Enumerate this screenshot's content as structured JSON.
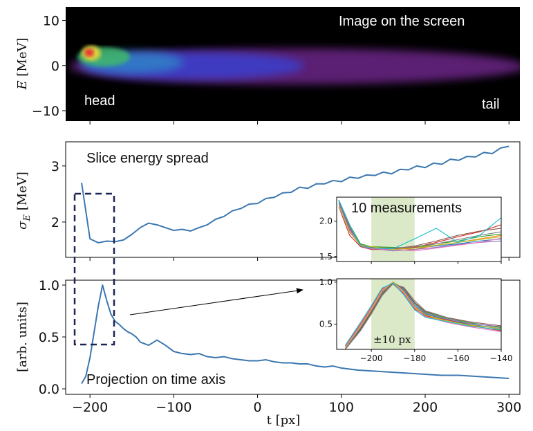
{
  "chart_data": [
    {
      "type": "image",
      "ylabel": {
        "symbol": "E",
        "unit": "[MeV]"
      },
      "xlim": [
        -229,
        313
      ],
      "xticks": [
        -200,
        -100,
        0,
        100,
        200,
        300
      ],
      "show_xtick_labels": false,
      "ylim": [
        -12.3,
        13
      ],
      "yticks": [
        10,
        0,
        {
          "value": -10,
          "label": "−10"
        }
      ],
      "annotation": "Image on the screen",
      "head_label": "head",
      "tail_label": "tail"
    },
    {
      "type": "line",
      "ylabel": {
        "symbol": "σ",
        "sub": "E",
        "unit": "[MeV]"
      },
      "xlim": [
        -229,
        313
      ],
      "xticks": [
        -200,
        -100,
        0,
        100,
        200,
        300
      ],
      "show_xtick_labels": false,
      "ylim": [
        1.37,
        3.43
      ],
      "yticks": [
        3,
        2
      ],
      "annotation": "Slice energy spread",
      "x": [
        -210,
        -200,
        -190,
        -180,
        -170,
        -160,
        -150,
        -140,
        -130,
        -120,
        -110,
        -100,
        -90,
        -80,
        -70,
        -60,
        -50,
        -40,
        -30,
        -20,
        -10,
        0,
        10,
        20,
        30,
        40,
        50,
        60,
        70,
        80,
        90,
        100,
        110,
        120,
        130,
        140,
        150,
        160,
        170,
        180,
        190,
        200,
        210,
        220,
        230,
        240,
        250,
        260,
        270,
        280,
        290,
        300
      ],
      "series": [
        {
          "color": "#3a77b0",
          "values": [
            2.7,
            1.7,
            1.63,
            1.66,
            1.65,
            1.68,
            1.78,
            1.9,
            1.98,
            1.95,
            1.9,
            1.85,
            1.87,
            1.84,
            1.9,
            1.95,
            2.05,
            2.1,
            2.2,
            2.24,
            2.32,
            2.33,
            2.42,
            2.44,
            2.52,
            2.53,
            2.62,
            2.6,
            2.68,
            2.68,
            2.74,
            2.72,
            2.8,
            2.78,
            2.84,
            2.83,
            2.89,
            2.86,
            2.94,
            2.93,
            3.0,
            2.97,
            3.05,
            3.03,
            3.12,
            3.1,
            3.17,
            3.16,
            3.24,
            3.22,
            3.32,
            3.35
          ]
        }
      ]
    },
    {
      "type": "line",
      "ylabel": {
        "unit": "[arb. units]"
      },
      "xlabel": "t [px]",
      "xlim": [
        -229,
        313
      ],
      "xticks": [
        {
          "value": -200,
          "label": "−200"
        },
        {
          "value": -100,
          "label": "−100"
        },
        0,
        100,
        200,
        300
      ],
      "ylim": [
        -0.053,
        1.047
      ],
      "yticks": [
        {
          "value": 1.0,
          "label": "1.0"
        },
        0.5,
        {
          "value": 0.0,
          "label": "0.0"
        }
      ],
      "annotation": "Projection on time axis",
      "x": [
        -210,
        -205,
        -200,
        -195,
        -190,
        -185,
        -180,
        -175,
        -170,
        -165,
        -160,
        -155,
        -150,
        -145,
        -140,
        -130,
        -120,
        -110,
        -100,
        -90,
        -80,
        -70,
        -60,
        -50,
        -40,
        -30,
        -20,
        -10,
        0,
        10,
        20,
        30,
        40,
        50,
        60,
        70,
        80,
        90,
        100,
        120,
        140,
        160,
        180,
        200,
        220,
        240,
        260,
        280,
        300
      ],
      "series": [
        {
          "color": "#3a77b0",
          "values": [
            0.05,
            0.12,
            0.3,
            0.55,
            0.8,
            1.0,
            0.85,
            0.72,
            0.65,
            0.62,
            0.58,
            0.55,
            0.53,
            0.5,
            0.45,
            0.42,
            0.47,
            0.42,
            0.36,
            0.34,
            0.33,
            0.34,
            0.31,
            0.3,
            0.31,
            0.29,
            0.28,
            0.27,
            0.27,
            0.28,
            0.26,
            0.25,
            0.25,
            0.24,
            0.24,
            0.22,
            0.21,
            0.22,
            0.2,
            0.18,
            0.17,
            0.16,
            0.15,
            0.14,
            0.13,
            0.13,
            0.12,
            0.11,
            0.1
          ]
        }
      ]
    },
    {
      "type": "line",
      "annotation": "10 measurements",
      "show_xtick_labels": false,
      "xlim": [
        -216,
        -140
      ],
      "xticks": [
        -200,
        -180,
        -160,
        -140
      ],
      "ylim": [
        1.43,
        2.34
      ],
      "yticks": [
        {
          "value": 2.0,
          "label": "2.0"
        },
        1.5
      ],
      "band": [
        -200,
        -180
      ],
      "band_color": "#dbe9c8",
      "x": [
        -215,
        -210,
        -205,
        -200,
        -190,
        -180,
        -170,
        -160,
        -150,
        -140
      ],
      "series": [
        {
          "color": "#1f77b4",
          "values": [
            2.25,
            1.9,
            1.66,
            1.62,
            1.6,
            1.62,
            1.65,
            1.68,
            1.72,
            1.75
          ]
        },
        {
          "color": "#ff7f0e",
          "values": [
            2.2,
            1.85,
            1.65,
            1.63,
            1.62,
            1.6,
            1.66,
            1.7,
            1.75,
            1.8
          ]
        },
        {
          "color": "#2ca02c",
          "values": [
            2.3,
            1.95,
            1.68,
            1.64,
            1.63,
            1.62,
            1.68,
            1.72,
            1.78,
            1.82
          ]
        },
        {
          "color": "#d62728",
          "values": [
            2.2,
            1.8,
            1.64,
            1.6,
            1.6,
            1.63,
            1.7,
            1.78,
            1.85,
            1.95
          ]
        },
        {
          "color": "#9467bd",
          "values": [
            2.25,
            1.88,
            1.67,
            1.62,
            1.58,
            1.6,
            1.63,
            1.67,
            1.7,
            1.72
          ]
        },
        {
          "color": "#8c564b",
          "values": [
            2.3,
            1.92,
            1.66,
            1.63,
            1.61,
            1.65,
            1.72,
            1.8,
            1.86,
            1.9
          ]
        },
        {
          "color": "#e377c2",
          "values": [
            2.2,
            1.86,
            1.65,
            1.61,
            1.6,
            1.58,
            1.62,
            1.66,
            1.7,
            1.76
          ]
        },
        {
          "color": "#7f7f7f",
          "values": [
            2.28,
            1.9,
            1.67,
            1.62,
            1.62,
            1.64,
            1.68,
            1.74,
            1.8,
            1.85
          ]
        },
        {
          "color": "#bcbd22",
          "values": [
            2.22,
            1.84,
            1.66,
            1.64,
            1.6,
            1.62,
            1.66,
            1.7,
            1.74,
            1.78
          ]
        },
        {
          "color": "#17becf",
          "values": [
            2.3,
            1.95,
            1.65,
            1.62,
            1.61,
            1.75,
            1.9,
            1.7,
            1.8,
            2.05
          ]
        }
      ]
    },
    {
      "type": "line",
      "annotation": "±10 px",
      "xlim": [
        -216,
        -140
      ],
      "xticks": [
        {
          "value": -200,
          "label": "−200"
        },
        {
          "value": -180,
          "label": "−180"
        },
        {
          "value": -160,
          "label": "−160"
        },
        {
          "value": -140,
          "label": "−140"
        }
      ],
      "ylim": [
        0.2,
        1.04
      ],
      "yticks": [
        {
          "value": 1.0,
          "label": "1.0"
        },
        0.5
      ],
      "band": [
        -200,
        -180
      ],
      "band_color": "#dbe9c8",
      "x": [
        -212,
        -205,
        -200,
        -195,
        -190,
        -185,
        -180,
        -175,
        -165,
        -155,
        -140
      ],
      "series": [
        {
          "color": "#1f77b4",
          "values": [
            0.2,
            0.45,
            0.65,
            0.88,
            1.0,
            0.9,
            0.72,
            0.62,
            0.55,
            0.5,
            0.45
          ]
        },
        {
          "color": "#ff7f0e",
          "values": [
            0.22,
            0.48,
            0.68,
            0.9,
            0.99,
            0.88,
            0.7,
            0.6,
            0.53,
            0.48,
            0.43
          ]
        },
        {
          "color": "#2ca02c",
          "values": [
            0.2,
            0.43,
            0.63,
            0.85,
            1.0,
            0.92,
            0.75,
            0.64,
            0.57,
            0.52,
            0.46
          ]
        },
        {
          "color": "#d62728",
          "values": [
            0.24,
            0.5,
            0.7,
            0.92,
            0.98,
            0.86,
            0.68,
            0.6,
            0.55,
            0.49,
            0.42
          ]
        },
        {
          "color": "#9467bd",
          "values": [
            0.21,
            0.46,
            0.66,
            0.87,
            1.0,
            0.91,
            0.74,
            0.63,
            0.56,
            0.51,
            0.47
          ]
        },
        {
          "color": "#8c564b",
          "values": [
            0.2,
            0.44,
            0.64,
            0.86,
            0.99,
            0.93,
            0.76,
            0.65,
            0.58,
            0.53,
            0.48
          ]
        },
        {
          "color": "#e377c2",
          "values": [
            0.23,
            0.49,
            0.69,
            0.91,
            1.0,
            0.87,
            0.69,
            0.59,
            0.52,
            0.47,
            0.41
          ]
        },
        {
          "color": "#7f7f7f",
          "values": [
            0.2,
            0.42,
            0.62,
            0.84,
            0.98,
            0.94,
            0.78,
            0.66,
            0.58,
            0.5,
            0.44
          ]
        },
        {
          "color": "#bcbd22",
          "values": [
            0.22,
            0.47,
            0.67,
            0.89,
            1.0,
            0.89,
            0.71,
            0.61,
            0.54,
            0.49,
            0.45
          ]
        },
        {
          "color": "#17becf",
          "values": [
            0.25,
            0.52,
            0.72,
            0.93,
            0.99,
            0.85,
            0.67,
            0.58,
            0.53,
            0.48,
            0.43
          ]
        }
      ]
    }
  ]
}
